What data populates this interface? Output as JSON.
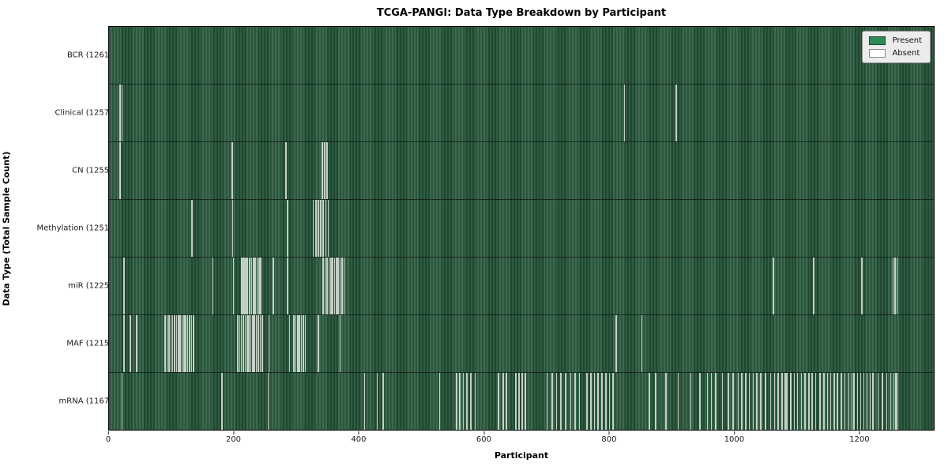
{
  "chart_data": {
    "type": "heatmap",
    "title": "TCGA-PANGI: Data Type Breakdown by Participant",
    "xlabel": "Participant",
    "ylabel": "Data Type (Total Sample Count)",
    "participants_total": 1261,
    "axis": {
      "xmin": 0,
      "xmax": 1320,
      "xticks": [
        0,
        200,
        400,
        600,
        800,
        1000,
        1200
      ]
    },
    "legend": [
      {
        "label": "Present",
        "color": "#2e8b57"
      },
      {
        "label": "Absent",
        "color": "#ffffff"
      }
    ],
    "colors": {
      "present_fill": "#2e8b57",
      "bar_stripe_dark": "#224b33",
      "bar_stripe_light": "#326245",
      "absent_stripe": "rgba(238,242,238,0.78)",
      "legend_bg": "#ececec"
    },
    "rows": [
      {
        "label": "BCR",
        "total": 1261,
        "absent": []
      },
      {
        "label": "Clinical",
        "total": 1257,
        "absent": [
          17,
          20,
          824,
          907
        ]
      },
      {
        "label": "CN",
        "total": 1255,
        "absent": [
          17,
          196,
          282,
          340,
          344,
          348
        ]
      },
      {
        "label": "Methylation",
        "total": 1251,
        "absent": [
          132,
          197,
          285,
          326,
          330,
          334,
          338,
          342,
          346,
          350
        ]
      },
      {
        "label": "miR",
        "total": 1225,
        "absent": [
          23,
          165,
          198,
          211,
          213,
          215,
          217,
          219,
          221,
          224,
          227,
          230,
          233,
          236,
          239,
          242,
          262,
          285,
          342,
          345,
          348,
          351,
          354,
          357,
          360,
          363,
          366,
          369,
          372,
          375,
          1062,
          1127,
          1204,
          1254,
          1257,
          1260
        ]
      },
      {
        "label": "MAF",
        "total": 1215,
        "absent": [
          23,
          33,
          43,
          89,
          92,
          95,
          98,
          101,
          104,
          107,
          110,
          113,
          116,
          119,
          122,
          125,
          128,
          131,
          134,
          205,
          208,
          211,
          214,
          217,
          220,
          223,
          226,
          229,
          232,
          235,
          238,
          241,
          244,
          255,
          288,
          295,
          298,
          301,
          304,
          307,
          310,
          313,
          334,
          369,
          811,
          852
        ]
      },
      {
        "label": "mRNA",
        "total": 1167,
        "absent": [
          20,
          180,
          254,
          408,
          428,
          438,
          528,
          555,
          560,
          566,
          572,
          578,
          585,
          622,
          630,
          635,
          650,
          655,
          660,
          665,
          700,
          708,
          715,
          722,
          730,
          738,
          745,
          752,
          764,
          770,
          776,
          782,
          788,
          794,
          800,
          806,
          864,
          874,
          890,
          910,
          930,
          945,
          957,
          963,
          970,
          981,
          990,
          998,
          1006,
          1012,
          1018,
          1024,
          1030,
          1036,
          1042,
          1050,
          1058,
          1064,
          1070,
          1076,
          1081,
          1084,
          1090,
          1096,
          1101,
          1107,
          1113,
          1119,
          1124,
          1130,
          1137,
          1143,
          1149,
          1154,
          1160,
          1165,
          1171,
          1177,
          1183,
          1188,
          1191,
          1197,
          1202,
          1207,
          1212,
          1217,
          1222,
          1230,
          1237,
          1244,
          1250,
          1255,
          1258,
          1260
        ]
      }
    ]
  }
}
